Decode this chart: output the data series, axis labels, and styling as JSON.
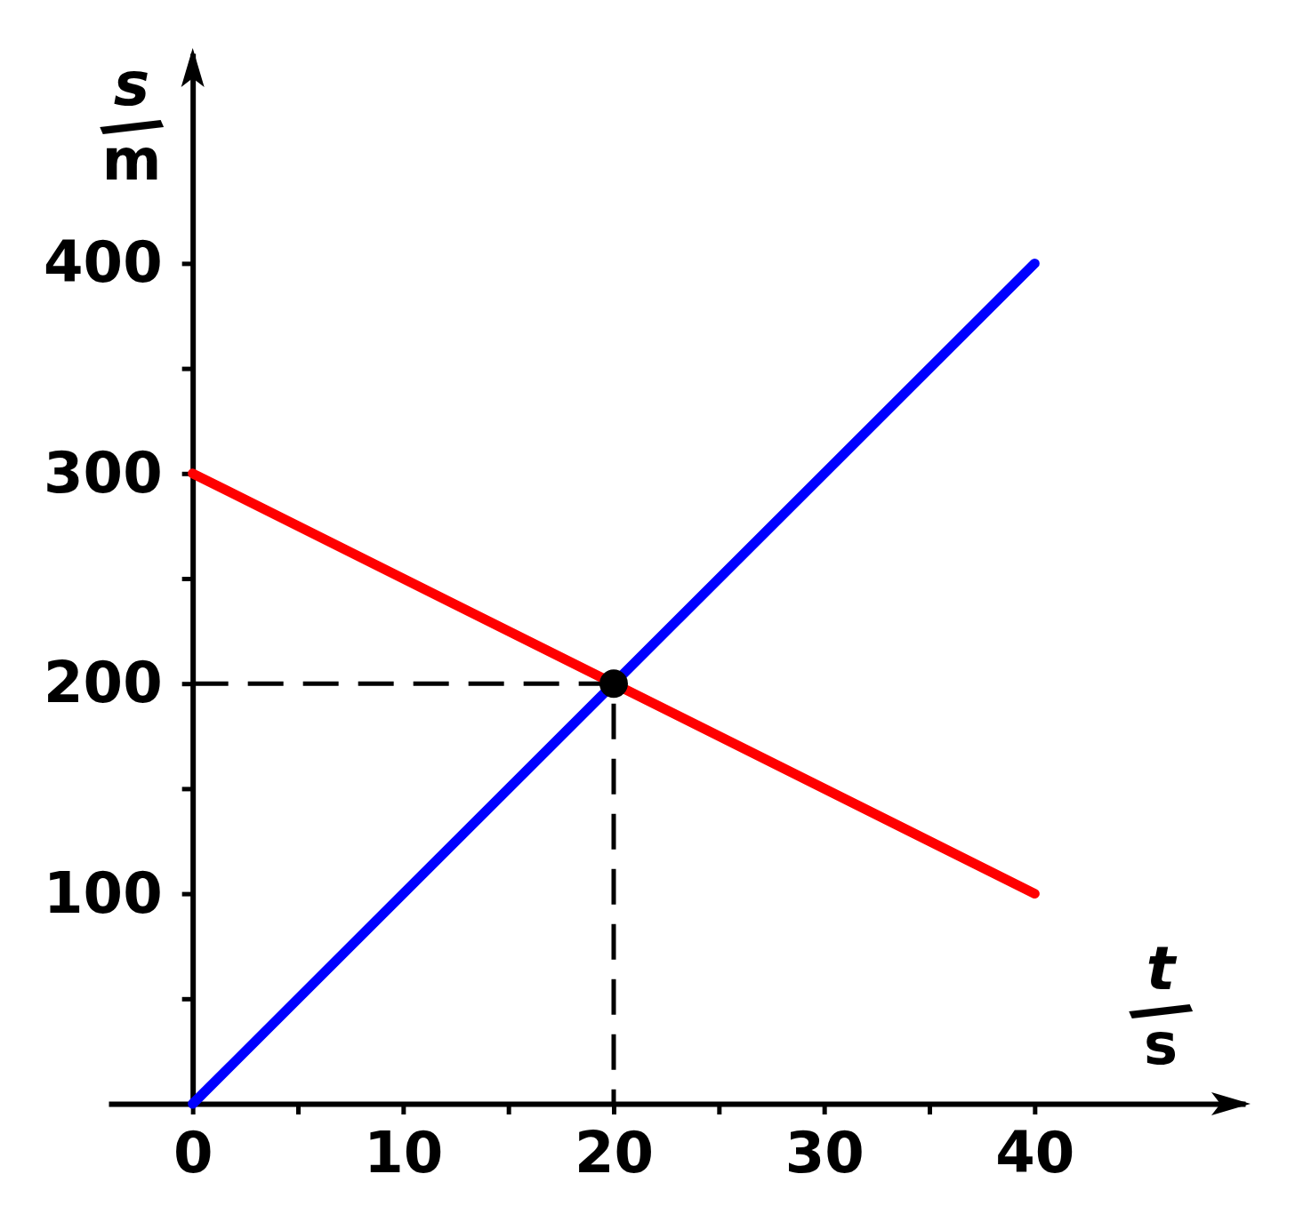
{
  "chart_data": {
    "type": "line",
    "xlabel": "t/s",
    "ylabel": "s/m",
    "xlim": [
      -4,
      50
    ],
    "ylim": [
      0,
      500
    ],
    "xticks": [
      0,
      {
        "value": 5,
        "label": null
      },
      10,
      {
        "value": 15,
        "label": null
      },
      20,
      {
        "value": 25,
        "label": null
      },
      30,
      {
        "value": 35,
        "label": null
      },
      40
    ],
    "yticks": [
      {
        "value": 50,
        "label": null
      },
      100,
      {
        "value": 150,
        "label": null
      },
      200,
      {
        "value": 250,
        "label": null
      },
      300,
      {
        "value": 350,
        "label": null
      },
      400
    ],
    "grid": false,
    "series": [
      {
        "type": "line",
        "x": [
          0,
          20,
          20
        ],
        "values": [
          200,
          200,
          0
        ],
        "color": "#000000",
        "line_style": "dashed"
      },
      {
        "type": "line",
        "x": [
          0,
          40
        ],
        "values": [
          0,
          400
        ],
        "color": "#0000ff",
        "line_style": "solid"
      },
      {
        "type": "line",
        "x": [
          0,
          40
        ],
        "values": [
          300,
          100
        ],
        "color": "#ff0000",
        "line_style": "solid"
      },
      {
        "type": "scatter",
        "x": [
          20
        ],
        "values": [
          200
        ],
        "color": "#000000",
        "marker": "circle"
      }
    ]
  }
}
